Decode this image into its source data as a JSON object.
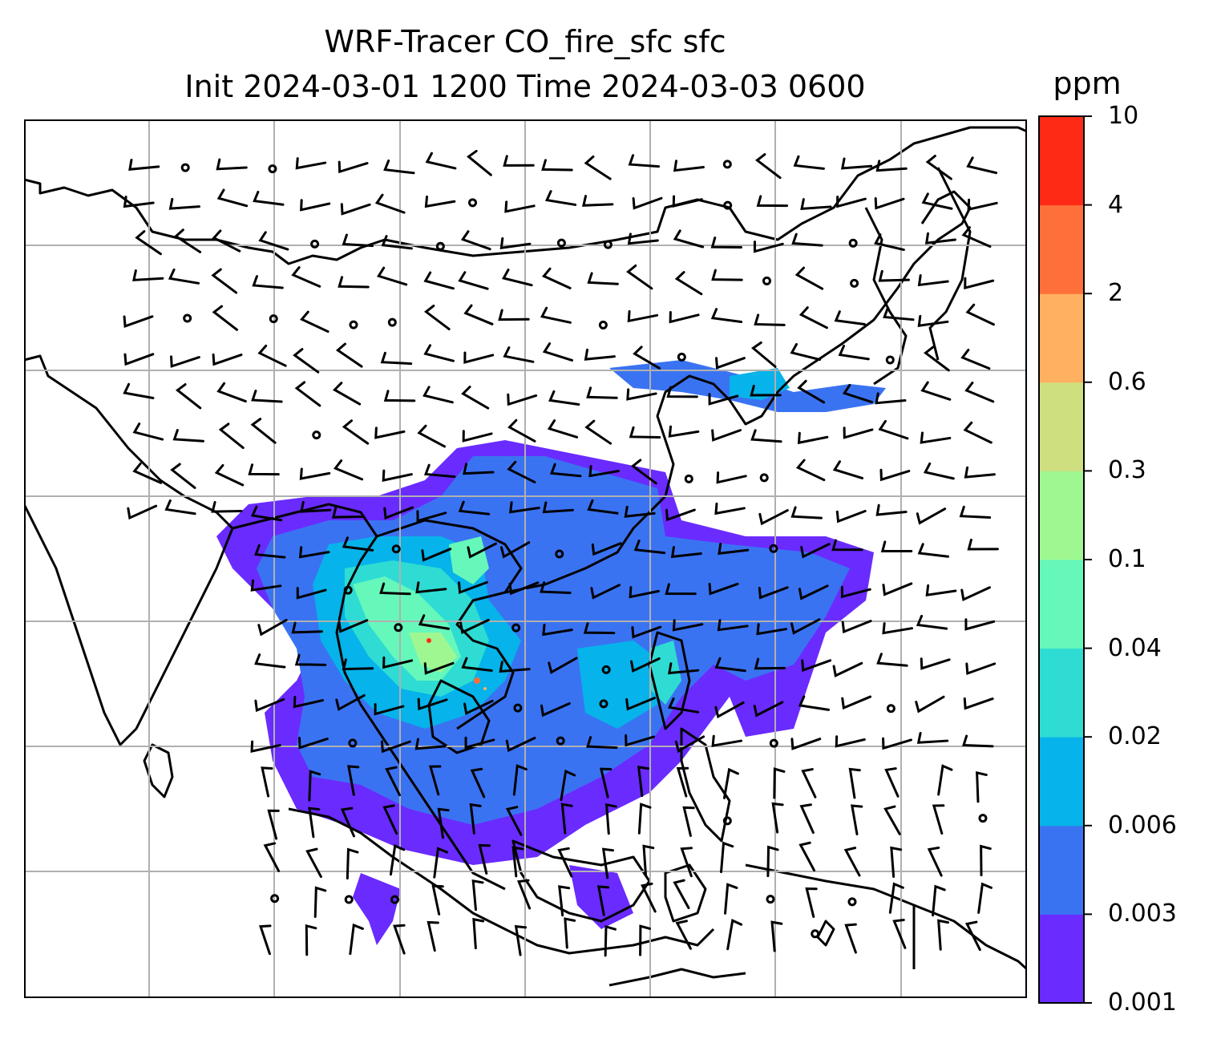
{
  "title": {
    "line1": "WRF-Tracer CO_fire_sfc sfc",
    "line2": "Init 2024-03-01 1200 Time 2024-03-03 0600"
  },
  "colorbar": {
    "unit": "ppm",
    "ticks": [
      "0.001",
      "0.003",
      "0.006",
      "0.02",
      "0.04",
      "0.1",
      "0.3",
      "0.6",
      "2",
      "4",
      "10"
    ],
    "colors": [
      "#6a2bff",
      "#3a73f2",
      "#06b3ea",
      "#2edcd3",
      "#66f8bb",
      "#9ff791",
      "#cedf80",
      "#ffb060",
      "#ff6f3a",
      "#ff2a15"
    ]
  },
  "map": {
    "gridlines": true,
    "wind_barbs": true,
    "field": "CO_fire_sfc"
  }
}
